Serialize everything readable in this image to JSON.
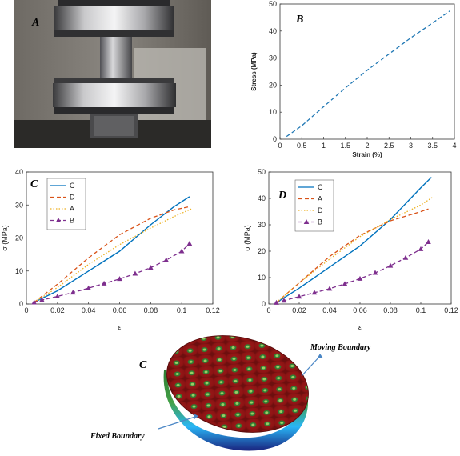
{
  "photo": {
    "panel_label": "A"
  },
  "chart_data": [
    {
      "id": "B",
      "type": "line",
      "panel_label": "B",
      "xlabel": "Strain (%)",
      "ylabel": "Stress (MPa)",
      "xlim": [
        0,
        4
      ],
      "ylim": [
        0,
        50
      ],
      "xticks": [
        0,
        0.5,
        1,
        1.5,
        2,
        2.5,
        3,
        3.5,
        4
      ],
      "yticks": [
        0,
        10,
        20,
        30,
        40,
        50
      ],
      "legend": "none",
      "series": [
        {
          "color": "#1f77b4",
          "dash": "dashed",
          "x": [
            0.15,
            0.5,
            1.0,
            1.5,
            2.0,
            2.5,
            3.0,
            3.5,
            3.9
          ],
          "y": [
            1,
            5,
            12,
            19,
            25.5,
            31.5,
            37.5,
            43,
            47.5
          ]
        }
      ]
    },
    {
      "id": "C",
      "type": "line",
      "panel_label": "C",
      "xlabel": "ε",
      "ylabel": "σ (MPa)",
      "xlim": [
        0,
        0.12
      ],
      "ylim": [
        0,
        40
      ],
      "xticks": [
        0,
        0.02,
        0.04,
        0.06,
        0.08,
        0.1,
        0.12
      ],
      "yticks": [
        0,
        10,
        20,
        30,
        40
      ],
      "legend": "top-left",
      "series": [
        {
          "name": "C",
          "color": "#0072bd",
          "dash": "solid",
          "marker": "none",
          "x": [
            0.005,
            0.02,
            0.04,
            0.06,
            0.08,
            0.095,
            0.105
          ],
          "y": [
            0.5,
            4,
            10,
            16,
            24,
            29.5,
            32.5
          ]
        },
        {
          "name": "D",
          "color": "#d95319",
          "dash": "dashed",
          "marker": "none",
          "x": [
            0.005,
            0.02,
            0.04,
            0.06,
            0.08,
            0.095,
            0.105
          ],
          "y": [
            0.5,
            6,
            14,
            21,
            26,
            28.5,
            29.5
          ]
        },
        {
          "name": "A",
          "color": "#edb120",
          "dash": "dotted",
          "marker": "none",
          "x": [
            0.005,
            0.02,
            0.04,
            0.06,
            0.08,
            0.095,
            0.107
          ],
          "y": [
            0.5,
            5,
            12,
            18,
            23,
            26.5,
            29
          ]
        },
        {
          "name": "B",
          "color": "#7e2f8e",
          "dash": "dashed",
          "marker": "triangle",
          "x": [
            0.005,
            0.01,
            0.02,
            0.03,
            0.04,
            0.05,
            0.06,
            0.07,
            0.08,
            0.09,
            0.1,
            0.105
          ],
          "y": [
            0.5,
            1.2,
            2.3,
            3.5,
            4.8,
            6.2,
            7.6,
            9.2,
            11,
            13.3,
            16,
            18.3
          ]
        }
      ]
    },
    {
      "id": "D",
      "type": "line",
      "panel_label": "D",
      "xlabel": "ε",
      "ylabel": "σ (MPa)",
      "xlim": [
        0,
        0.12
      ],
      "ylim": [
        0,
        50
      ],
      "xticks": [
        0,
        0.02,
        0.04,
        0.06,
        0.08,
        0.1,
        0.12
      ],
      "yticks": [
        0,
        10,
        20,
        30,
        40,
        50
      ],
      "legend": "top-left",
      "series": [
        {
          "name": "C",
          "color": "#0072bd",
          "dash": "solid",
          "marker": "none",
          "x": [
            0.005,
            0.02,
            0.04,
            0.06,
            0.08,
            0.1,
            0.107
          ],
          "y": [
            0.5,
            6,
            14,
            22,
            32,
            44,
            48
          ]
        },
        {
          "name": "A",
          "color": "#d95319",
          "dash": "dashed",
          "marker": "none",
          "x": [
            0.005,
            0.02,
            0.04,
            0.06,
            0.08,
            0.1,
            0.105
          ],
          "y": [
            0.5,
            8,
            18,
            26,
            31.5,
            35,
            36
          ]
        },
        {
          "name": "D",
          "color": "#edb120",
          "dash": "dotted",
          "marker": "none",
          "x": [
            0.005,
            0.02,
            0.04,
            0.06,
            0.08,
            0.1,
            0.108
          ],
          "y": [
            0.5,
            8,
            17,
            25.5,
            32,
            37.5,
            40.5
          ]
        },
        {
          "name": "B",
          "color": "#7e2f8e",
          "dash": "dashed",
          "marker": "triangle",
          "x": [
            0.005,
            0.01,
            0.02,
            0.03,
            0.04,
            0.05,
            0.06,
            0.07,
            0.08,
            0.09,
            0.1,
            0.105
          ],
          "y": [
            0.5,
            1.3,
            2.8,
            4.3,
            5.8,
            7.6,
            9.6,
            11.8,
            14.5,
            17.5,
            20.8,
            23.5
          ]
        }
      ]
    }
  ],
  "simulation": {
    "panel_label": "C",
    "moving_boundary": "Moving Boundary",
    "fixed_boundary": "Fixed Boundary"
  }
}
